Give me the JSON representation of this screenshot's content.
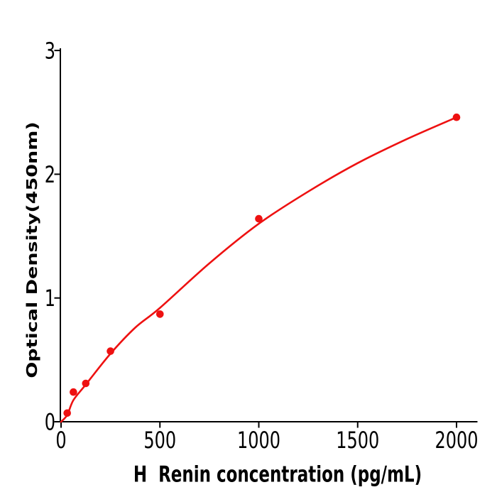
{
  "chart_data": {
    "type": "scatter",
    "title": "",
    "xlabel": "H  Renin concentration (pg/mL)",
    "ylabel": "Optical Density(450nm)",
    "x_ticks": [
      0,
      500,
      1000,
      1500,
      2000
    ],
    "y_ticks": [
      0,
      1,
      2,
      3
    ],
    "xlim": [
      0,
      2105
    ],
    "ylim": [
      0,
      3.02
    ],
    "grid": false,
    "legend": null,
    "points": {
      "marker": "filled-circle",
      "x": [
        31.25,
        62.5,
        125,
        250,
        500,
        1000,
        2000
      ],
      "y": [
        0.07,
        0.24,
        0.31,
        0.57,
        0.87,
        1.64,
        2.46
      ]
    },
    "fit_curve": {
      "shape": "saturating-binding-curve",
      "x": [
        0,
        31.25,
        62.5,
        125,
        250,
        375,
        500,
        750,
        1000,
        1250,
        1500,
        1750,
        2000
      ],
      "y": [
        0,
        0.055,
        0.175,
        0.3,
        0.55,
        0.76,
        0.92,
        1.28,
        1.6,
        1.86,
        2.09,
        2.285,
        2.46
      ]
    },
    "colors": {
      "accent": "#ee1111",
      "axis": "#000000",
      "background": "#ffffff"
    }
  }
}
